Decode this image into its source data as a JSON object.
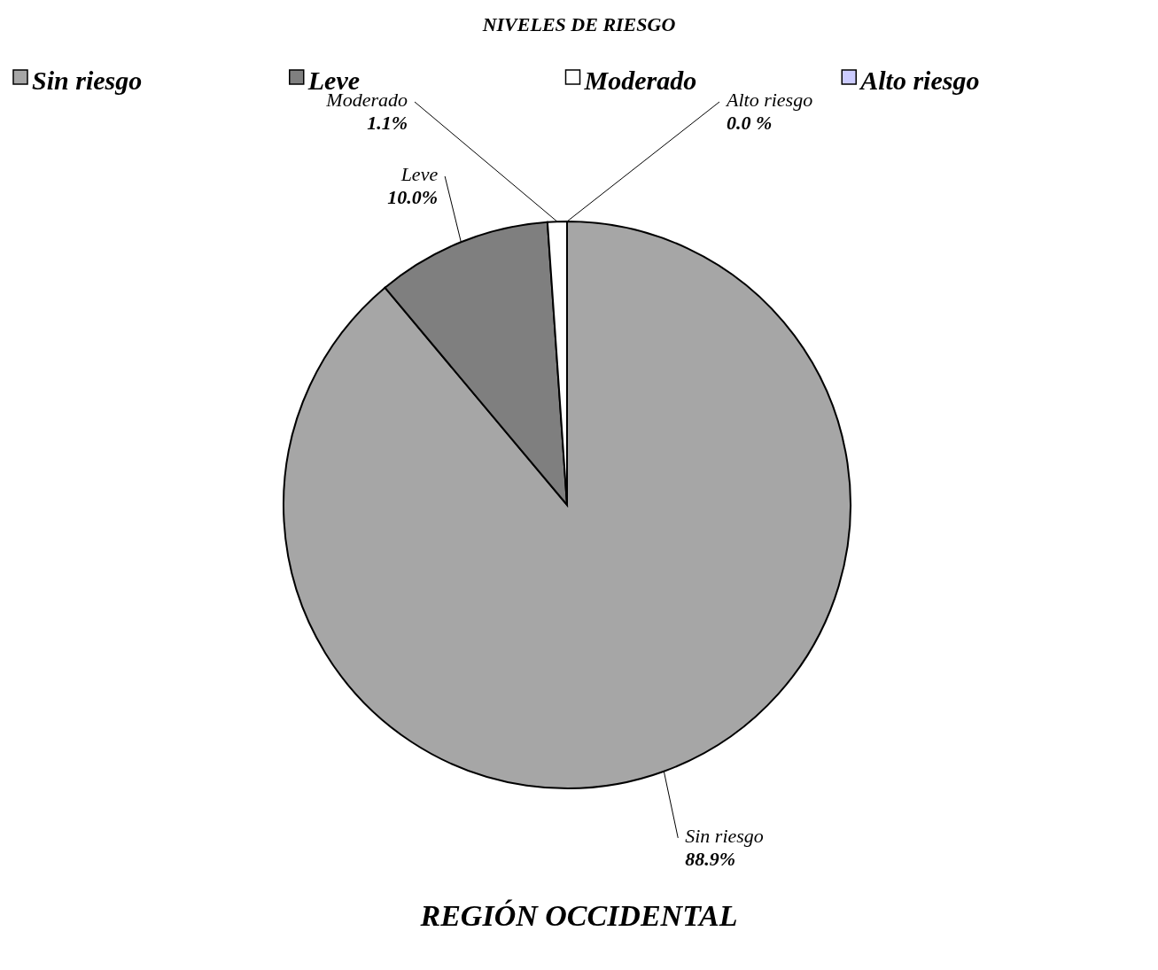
{
  "chart_data": {
    "type": "pie",
    "title": "NIVELES DE RIESGO",
    "categories": [
      "Sin riesgo",
      "Leve",
      "Moderado",
      "Alto riesgo"
    ],
    "values": [
      88.9,
      10.0,
      1.1,
      0.0
    ],
    "value_labels": [
      "88.9%",
      "10.0%",
      "1.1%",
      "0.0 %"
    ],
    "colors": [
      "#a6a6a6",
      "#7f7f7f",
      "#ffffff",
      "#ccccff"
    ],
    "legend": "top",
    "annotations": [
      "REGIÓN OCCIDENTAL"
    ]
  }
}
